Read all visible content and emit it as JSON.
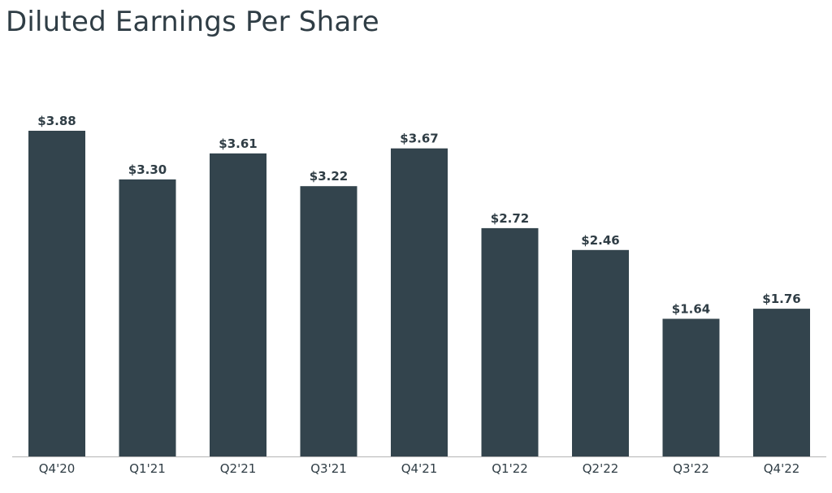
{
  "colors": {
    "bar": "#33444d",
    "text": "#2f3d45",
    "axis": "#b5b5b5"
  },
  "chart_data": {
    "type": "bar",
    "title": "Diluted Earnings Per Share",
    "xlabel": "",
    "ylabel": "",
    "categories": [
      "Q4'20",
      "Q1'21",
      "Q2'21",
      "Q3'21",
      "Q4'21",
      "Q1'22",
      "Q2'22",
      "Q3'22",
      "Q4'22"
    ],
    "values": [
      3.88,
      3.3,
      3.61,
      3.22,
      3.67,
      2.72,
      2.46,
      1.64,
      1.76
    ],
    "value_labels": [
      "$3.88",
      "$3.30",
      "$3.61",
      "$3.22",
      "$3.67",
      "$2.72",
      "$2.46",
      "$1.64",
      "$1.76"
    ],
    "ylim": [
      0,
      3.88
    ],
    "grid": false,
    "legend": "none"
  }
}
